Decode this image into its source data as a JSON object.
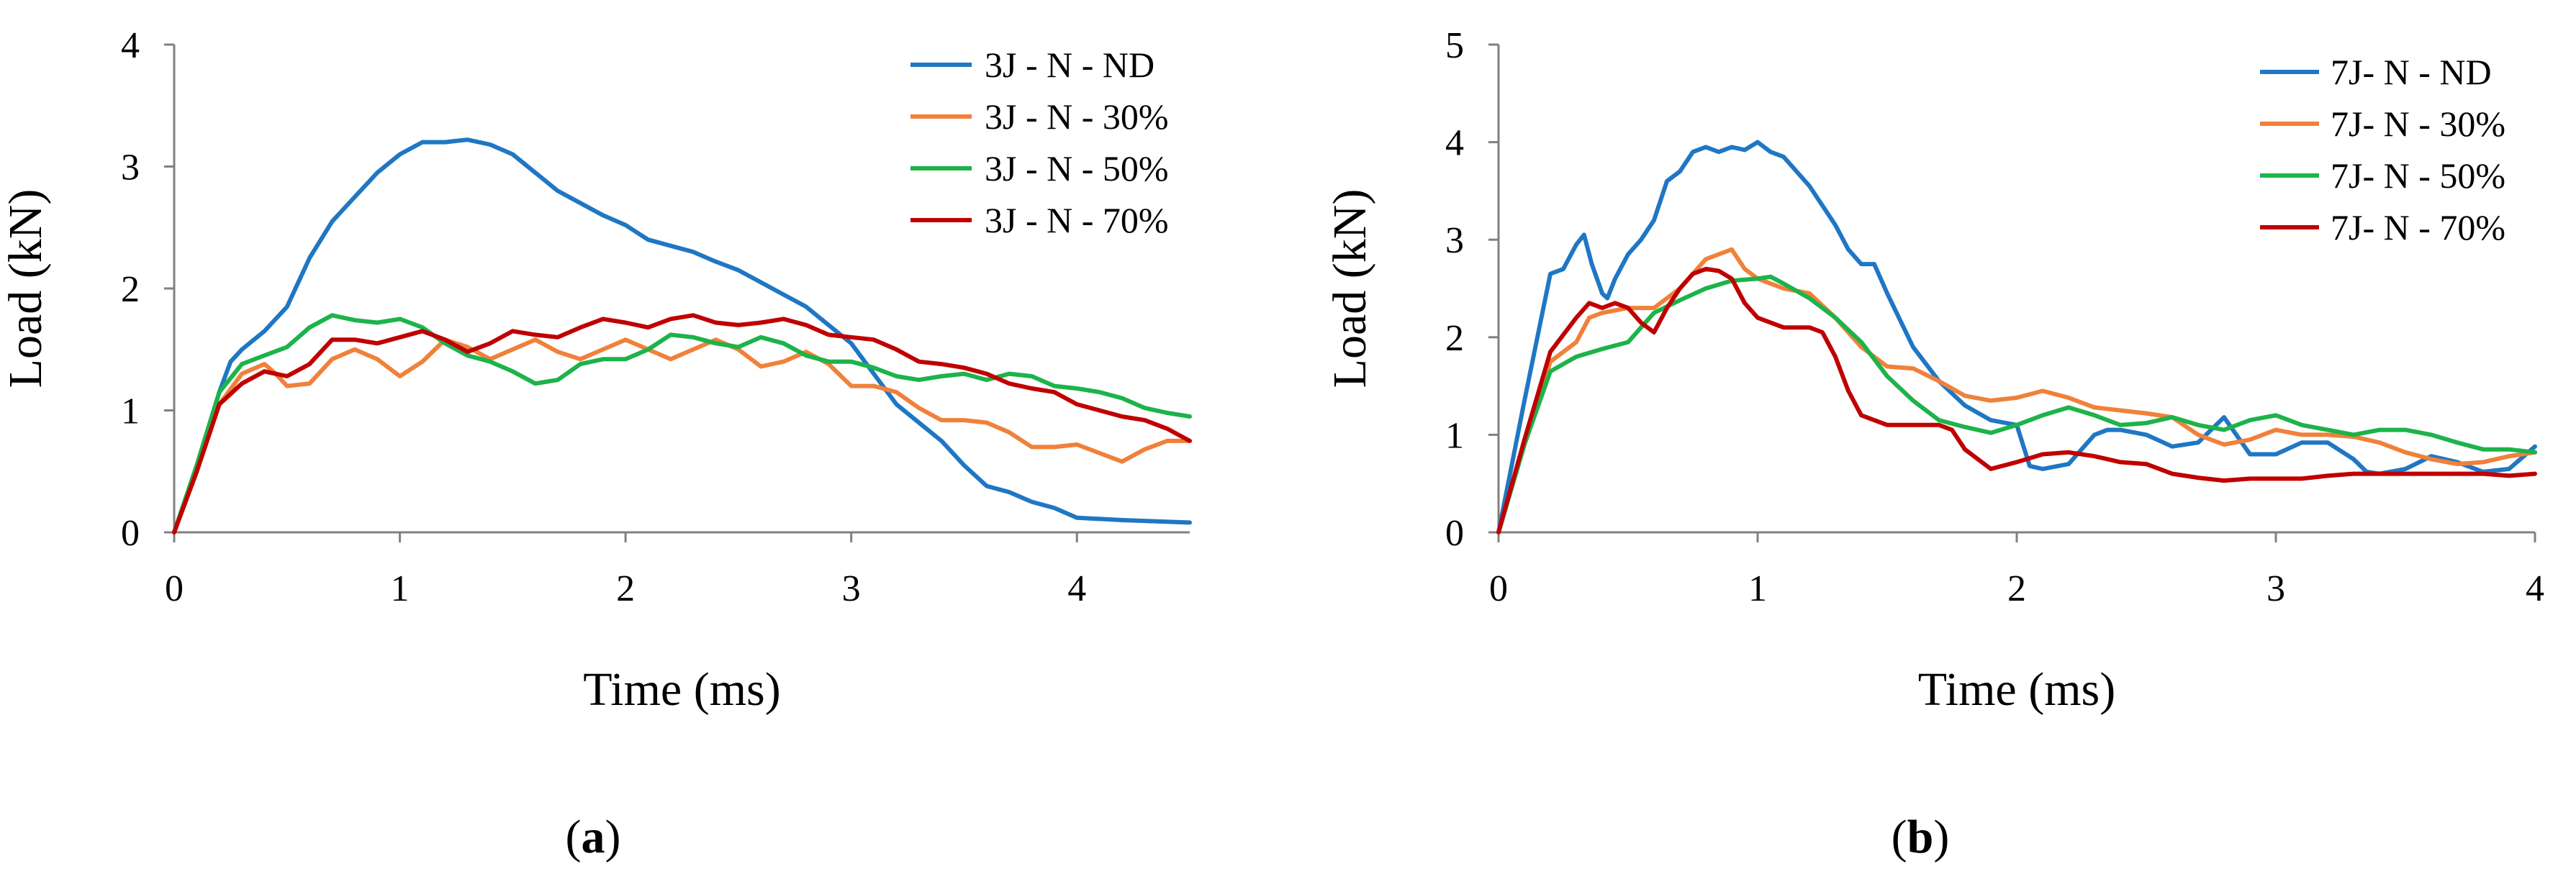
{
  "figure": {
    "panel_labels": [
      {
        "open": "(",
        "letter": "a",
        "close": ")"
      },
      {
        "open": "(",
        "letter": "b",
        "close": ")"
      }
    ]
  },
  "chart_data": [
    {
      "type": "line",
      "panel": "a",
      "title": "",
      "xlabel": "Time (ms)",
      "ylabel": "Load (kN)",
      "xlim": [
        0,
        4.5
      ],
      "ylim": [
        0,
        4
      ],
      "xticks": [
        0,
        1,
        2,
        3,
        4
      ],
      "yticks": [
        0,
        1,
        2,
        3,
        4
      ],
      "grid": false,
      "legend_position": "top-right",
      "series": [
        {
          "name": "3J - N - ND",
          "color": "#1f77c4",
          "x": [
            0,
            0.1,
            0.2,
            0.25,
            0.3,
            0.4,
            0.5,
            0.6,
            0.7,
            0.8,
            0.9,
            1.0,
            1.1,
            1.2,
            1.3,
            1.4,
            1.5,
            1.6,
            1.7,
            1.8,
            1.9,
            2.0,
            2.1,
            2.2,
            2.3,
            2.4,
            2.5,
            2.6,
            2.7,
            2.8,
            2.9,
            3.0,
            3.1,
            3.2,
            3.3,
            3.4,
            3.5,
            3.6,
            3.7,
            3.8,
            3.9,
            4.0,
            4.2,
            4.5
          ],
          "y": [
            0,
            0.55,
            1.15,
            1.4,
            1.5,
            1.65,
            1.85,
            2.25,
            2.55,
            2.75,
            2.95,
            3.1,
            3.2,
            3.2,
            3.22,
            3.18,
            3.1,
            2.95,
            2.8,
            2.7,
            2.6,
            2.52,
            2.4,
            2.35,
            2.3,
            2.22,
            2.15,
            2.05,
            1.95,
            1.85,
            1.7,
            1.55,
            1.3,
            1.05,
            0.9,
            0.75,
            0.55,
            0.38,
            0.33,
            0.25,
            0.2,
            0.12,
            0.1,
            0.08
          ]
        },
        {
          "name": "3J - N - 30%",
          "color": "#f0813a",
          "x": [
            0,
            0.1,
            0.2,
            0.3,
            0.4,
            0.45,
            0.5,
            0.6,
            0.7,
            0.8,
            0.9,
            1.0,
            1.1,
            1.2,
            1.3,
            1.4,
            1.5,
            1.6,
            1.7,
            1.8,
            1.9,
            2.0,
            2.1,
            2.2,
            2.3,
            2.4,
            2.5,
            2.6,
            2.7,
            2.8,
            2.9,
            3.0,
            3.1,
            3.2,
            3.3,
            3.4,
            3.5,
            3.6,
            3.7,
            3.8,
            3.9,
            4.0,
            4.1,
            4.2,
            4.3,
            4.4,
            4.5
          ],
          "y": [
            0,
            0.5,
            1.05,
            1.3,
            1.38,
            1.3,
            1.2,
            1.22,
            1.42,
            1.5,
            1.42,
            1.28,
            1.4,
            1.58,
            1.52,
            1.42,
            1.5,
            1.58,
            1.48,
            1.42,
            1.5,
            1.58,
            1.5,
            1.42,
            1.5,
            1.58,
            1.5,
            1.36,
            1.4,
            1.48,
            1.38,
            1.2,
            1.2,
            1.15,
            1.02,
            0.92,
            0.92,
            0.9,
            0.82,
            0.7,
            0.7,
            0.72,
            0.65,
            0.58,
            0.68,
            0.75,
            0.75
          ]
        },
        {
          "name": "3J - N - 50%",
          "color": "#1db34a",
          "x": [
            0,
            0.1,
            0.2,
            0.3,
            0.4,
            0.5,
            0.6,
            0.7,
            0.8,
            0.9,
            1.0,
            1.1,
            1.2,
            1.3,
            1.4,
            1.5,
            1.6,
            1.7,
            1.8,
            1.9,
            2.0,
            2.1,
            2.2,
            2.3,
            2.4,
            2.5,
            2.6,
            2.7,
            2.8,
            2.9,
            3.0,
            3.1,
            3.2,
            3.3,
            3.4,
            3.5,
            3.6,
            3.7,
            3.8,
            3.9,
            4.0,
            4.1,
            4.2,
            4.3,
            4.4,
            4.5
          ],
          "y": [
            0,
            0.55,
            1.15,
            1.38,
            1.45,
            1.52,
            1.68,
            1.78,
            1.74,
            1.72,
            1.75,
            1.68,
            1.55,
            1.45,
            1.4,
            1.32,
            1.22,
            1.25,
            1.38,
            1.42,
            1.42,
            1.5,
            1.62,
            1.6,
            1.55,
            1.52,
            1.6,
            1.55,
            1.45,
            1.4,
            1.4,
            1.35,
            1.28,
            1.25,
            1.28,
            1.3,
            1.25,
            1.3,
            1.28,
            1.2,
            1.18,
            1.15,
            1.1,
            1.02,
            0.98,
            0.95
          ]
        },
        {
          "name": "3J - N - 70%",
          "color": "#c00000",
          "x": [
            0,
            0.1,
            0.2,
            0.3,
            0.4,
            0.5,
            0.6,
            0.7,
            0.8,
            0.9,
            1.0,
            1.1,
            1.2,
            1.3,
            1.4,
            1.5,
            1.6,
            1.7,
            1.8,
            1.9,
            2.0,
            2.1,
            2.2,
            2.3,
            2.4,
            2.5,
            2.6,
            2.7,
            2.8,
            2.9,
            3.0,
            3.1,
            3.2,
            3.3,
            3.4,
            3.5,
            3.6,
            3.7,
            3.8,
            3.9,
            4.0,
            4.1,
            4.2,
            4.3,
            4.4,
            4.5
          ],
          "y": [
            0,
            0.5,
            1.05,
            1.22,
            1.32,
            1.28,
            1.38,
            1.58,
            1.58,
            1.55,
            1.6,
            1.65,
            1.58,
            1.48,
            1.55,
            1.65,
            1.62,
            1.6,
            1.68,
            1.75,
            1.72,
            1.68,
            1.75,
            1.78,
            1.72,
            1.7,
            1.72,
            1.75,
            1.7,
            1.62,
            1.6,
            1.58,
            1.5,
            1.4,
            1.38,
            1.35,
            1.3,
            1.22,
            1.18,
            1.15,
            1.05,
            1.0,
            0.95,
            0.92,
            0.85,
            0.75
          ]
        }
      ]
    },
    {
      "type": "line",
      "panel": "b",
      "title": "",
      "xlabel": "Time (ms)",
      "ylabel": "Load (kN)",
      "xlim": [
        0,
        4
      ],
      "ylim": [
        0,
        5
      ],
      "xticks": [
        0,
        1,
        2,
        3,
        4
      ],
      "yticks": [
        0,
        1,
        2,
        3,
        4,
        5
      ],
      "grid": false,
      "legend_position": "top-right",
      "series": [
        {
          "name": "7J- N - ND",
          "color": "#1f77c4",
          "x": [
            0,
            0.1,
            0.2,
            0.25,
            0.3,
            0.33,
            0.36,
            0.4,
            0.42,
            0.45,
            0.5,
            0.55,
            0.6,
            0.65,
            0.7,
            0.75,
            0.8,
            0.85,
            0.9,
            0.95,
            1.0,
            1.05,
            1.1,
            1.2,
            1.3,
            1.35,
            1.4,
            1.45,
            1.5,
            1.6,
            1.7,
            1.8,
            1.9,
            2.0,
            2.05,
            2.1,
            2.2,
            2.3,
            2.35,
            2.4,
            2.5,
            2.6,
            2.7,
            2.8,
            2.9,
            3.0,
            3.1,
            3.2,
            3.3,
            3.35,
            3.4,
            3.5,
            3.6,
            3.7,
            3.8,
            3.9,
            4.0
          ],
          "y": [
            0,
            1.35,
            2.65,
            2.7,
            2.95,
            3.05,
            2.75,
            2.45,
            2.4,
            2.6,
            2.85,
            3.0,
            3.2,
            3.6,
            3.7,
            3.9,
            3.95,
            3.9,
            3.95,
            3.92,
            4.0,
            3.9,
            3.85,
            3.55,
            3.15,
            2.9,
            2.75,
            2.75,
            2.45,
            1.9,
            1.55,
            1.3,
            1.15,
            1.1,
            0.68,
            0.65,
            0.7,
            1.0,
            1.05,
            1.05,
            1.0,
            0.88,
            0.92,
            1.18,
            0.8,
            0.8,
            0.92,
            0.92,
            0.75,
            0.62,
            0.6,
            0.65,
            0.78,
            0.72,
            0.62,
            0.65,
            0.88
          ]
        },
        {
          "name": "7J- N - 30%",
          "color": "#f0813a",
          "x": [
            0,
            0.1,
            0.2,
            0.3,
            0.35,
            0.4,
            0.5,
            0.6,
            0.7,
            0.8,
            0.85,
            0.9,
            0.95,
            1.0,
            1.1,
            1.2,
            1.3,
            1.4,
            1.5,
            1.6,
            1.7,
            1.8,
            1.9,
            2.0,
            2.1,
            2.2,
            2.3,
            2.4,
            2.5,
            2.6,
            2.7,
            2.8,
            2.9,
            3.0,
            3.1,
            3.2,
            3.3,
            3.4,
            3.5,
            3.6,
            3.7,
            3.8,
            3.9,
            4.0
          ],
          "y": [
            0,
            0.9,
            1.75,
            1.95,
            2.2,
            2.25,
            2.3,
            2.3,
            2.5,
            2.8,
            2.85,
            2.9,
            2.7,
            2.6,
            2.5,
            2.45,
            2.2,
            1.9,
            1.7,
            1.68,
            1.55,
            1.4,
            1.35,
            1.38,
            1.45,
            1.38,
            1.28,
            1.25,
            1.22,
            1.18,
            1.0,
            0.9,
            0.95,
            1.05,
            1.0,
            1.0,
            0.98,
            0.92,
            0.82,
            0.75,
            0.7,
            0.72,
            0.78,
            0.82
          ]
        },
        {
          "name": "7J- N - 50%",
          "color": "#1db34a",
          "x": [
            0,
            0.1,
            0.2,
            0.3,
            0.4,
            0.5,
            0.6,
            0.7,
            0.8,
            0.9,
            1.0,
            1.05,
            1.1,
            1.2,
            1.3,
            1.4,
            1.5,
            1.6,
            1.7,
            1.8,
            1.9,
            2.0,
            2.1,
            2.2,
            2.3,
            2.4,
            2.5,
            2.6,
            2.7,
            2.8,
            2.9,
            3.0,
            3.1,
            3.2,
            3.3,
            3.4,
            3.5,
            3.6,
            3.7,
            3.8,
            3.9,
            4.0
          ],
          "y": [
            0,
            0.9,
            1.65,
            1.8,
            1.88,
            1.95,
            2.25,
            2.38,
            2.5,
            2.58,
            2.6,
            2.62,
            2.55,
            2.4,
            2.2,
            1.95,
            1.6,
            1.35,
            1.15,
            1.08,
            1.02,
            1.1,
            1.2,
            1.28,
            1.2,
            1.1,
            1.12,
            1.18,
            1.1,
            1.05,
            1.15,
            1.2,
            1.1,
            1.05,
            1.0,
            1.05,
            1.05,
            1.0,
            0.92,
            0.85,
            0.85,
            0.82
          ]
        },
        {
          "name": "7J- N - 70%",
          "color": "#c00000",
          "x": [
            0,
            0.1,
            0.2,
            0.3,
            0.35,
            0.4,
            0.45,
            0.5,
            0.55,
            0.6,
            0.65,
            0.7,
            0.75,
            0.8,
            0.85,
            0.9,
            0.95,
            1.0,
            1.1,
            1.2,
            1.25,
            1.3,
            1.35,
            1.4,
            1.5,
            1.6,
            1.7,
            1.75,
            1.8,
            1.9,
            2.0,
            2.1,
            2.2,
            2.3,
            2.4,
            2.5,
            2.6,
            2.7,
            2.8,
            2.9,
            3.0,
            3.1,
            3.2,
            3.3,
            3.4,
            3.5,
            3.6,
            3.7,
            3.8,
            3.9,
            4.0
          ],
          "y": [
            0,
            0.95,
            1.85,
            2.2,
            2.35,
            2.3,
            2.35,
            2.3,
            2.15,
            2.05,
            2.3,
            2.5,
            2.65,
            2.7,
            2.68,
            2.6,
            2.35,
            2.2,
            2.1,
            2.1,
            2.05,
            1.8,
            1.45,
            1.2,
            1.1,
            1.1,
            1.1,
            1.05,
            0.85,
            0.65,
            0.72,
            0.8,
            0.82,
            0.78,
            0.72,
            0.7,
            0.6,
            0.56,
            0.53,
            0.55,
            0.55,
            0.55,
            0.58,
            0.6,
            0.6,
            0.6,
            0.6,
            0.6,
            0.6,
            0.58,
            0.6
          ]
        }
      ]
    }
  ]
}
